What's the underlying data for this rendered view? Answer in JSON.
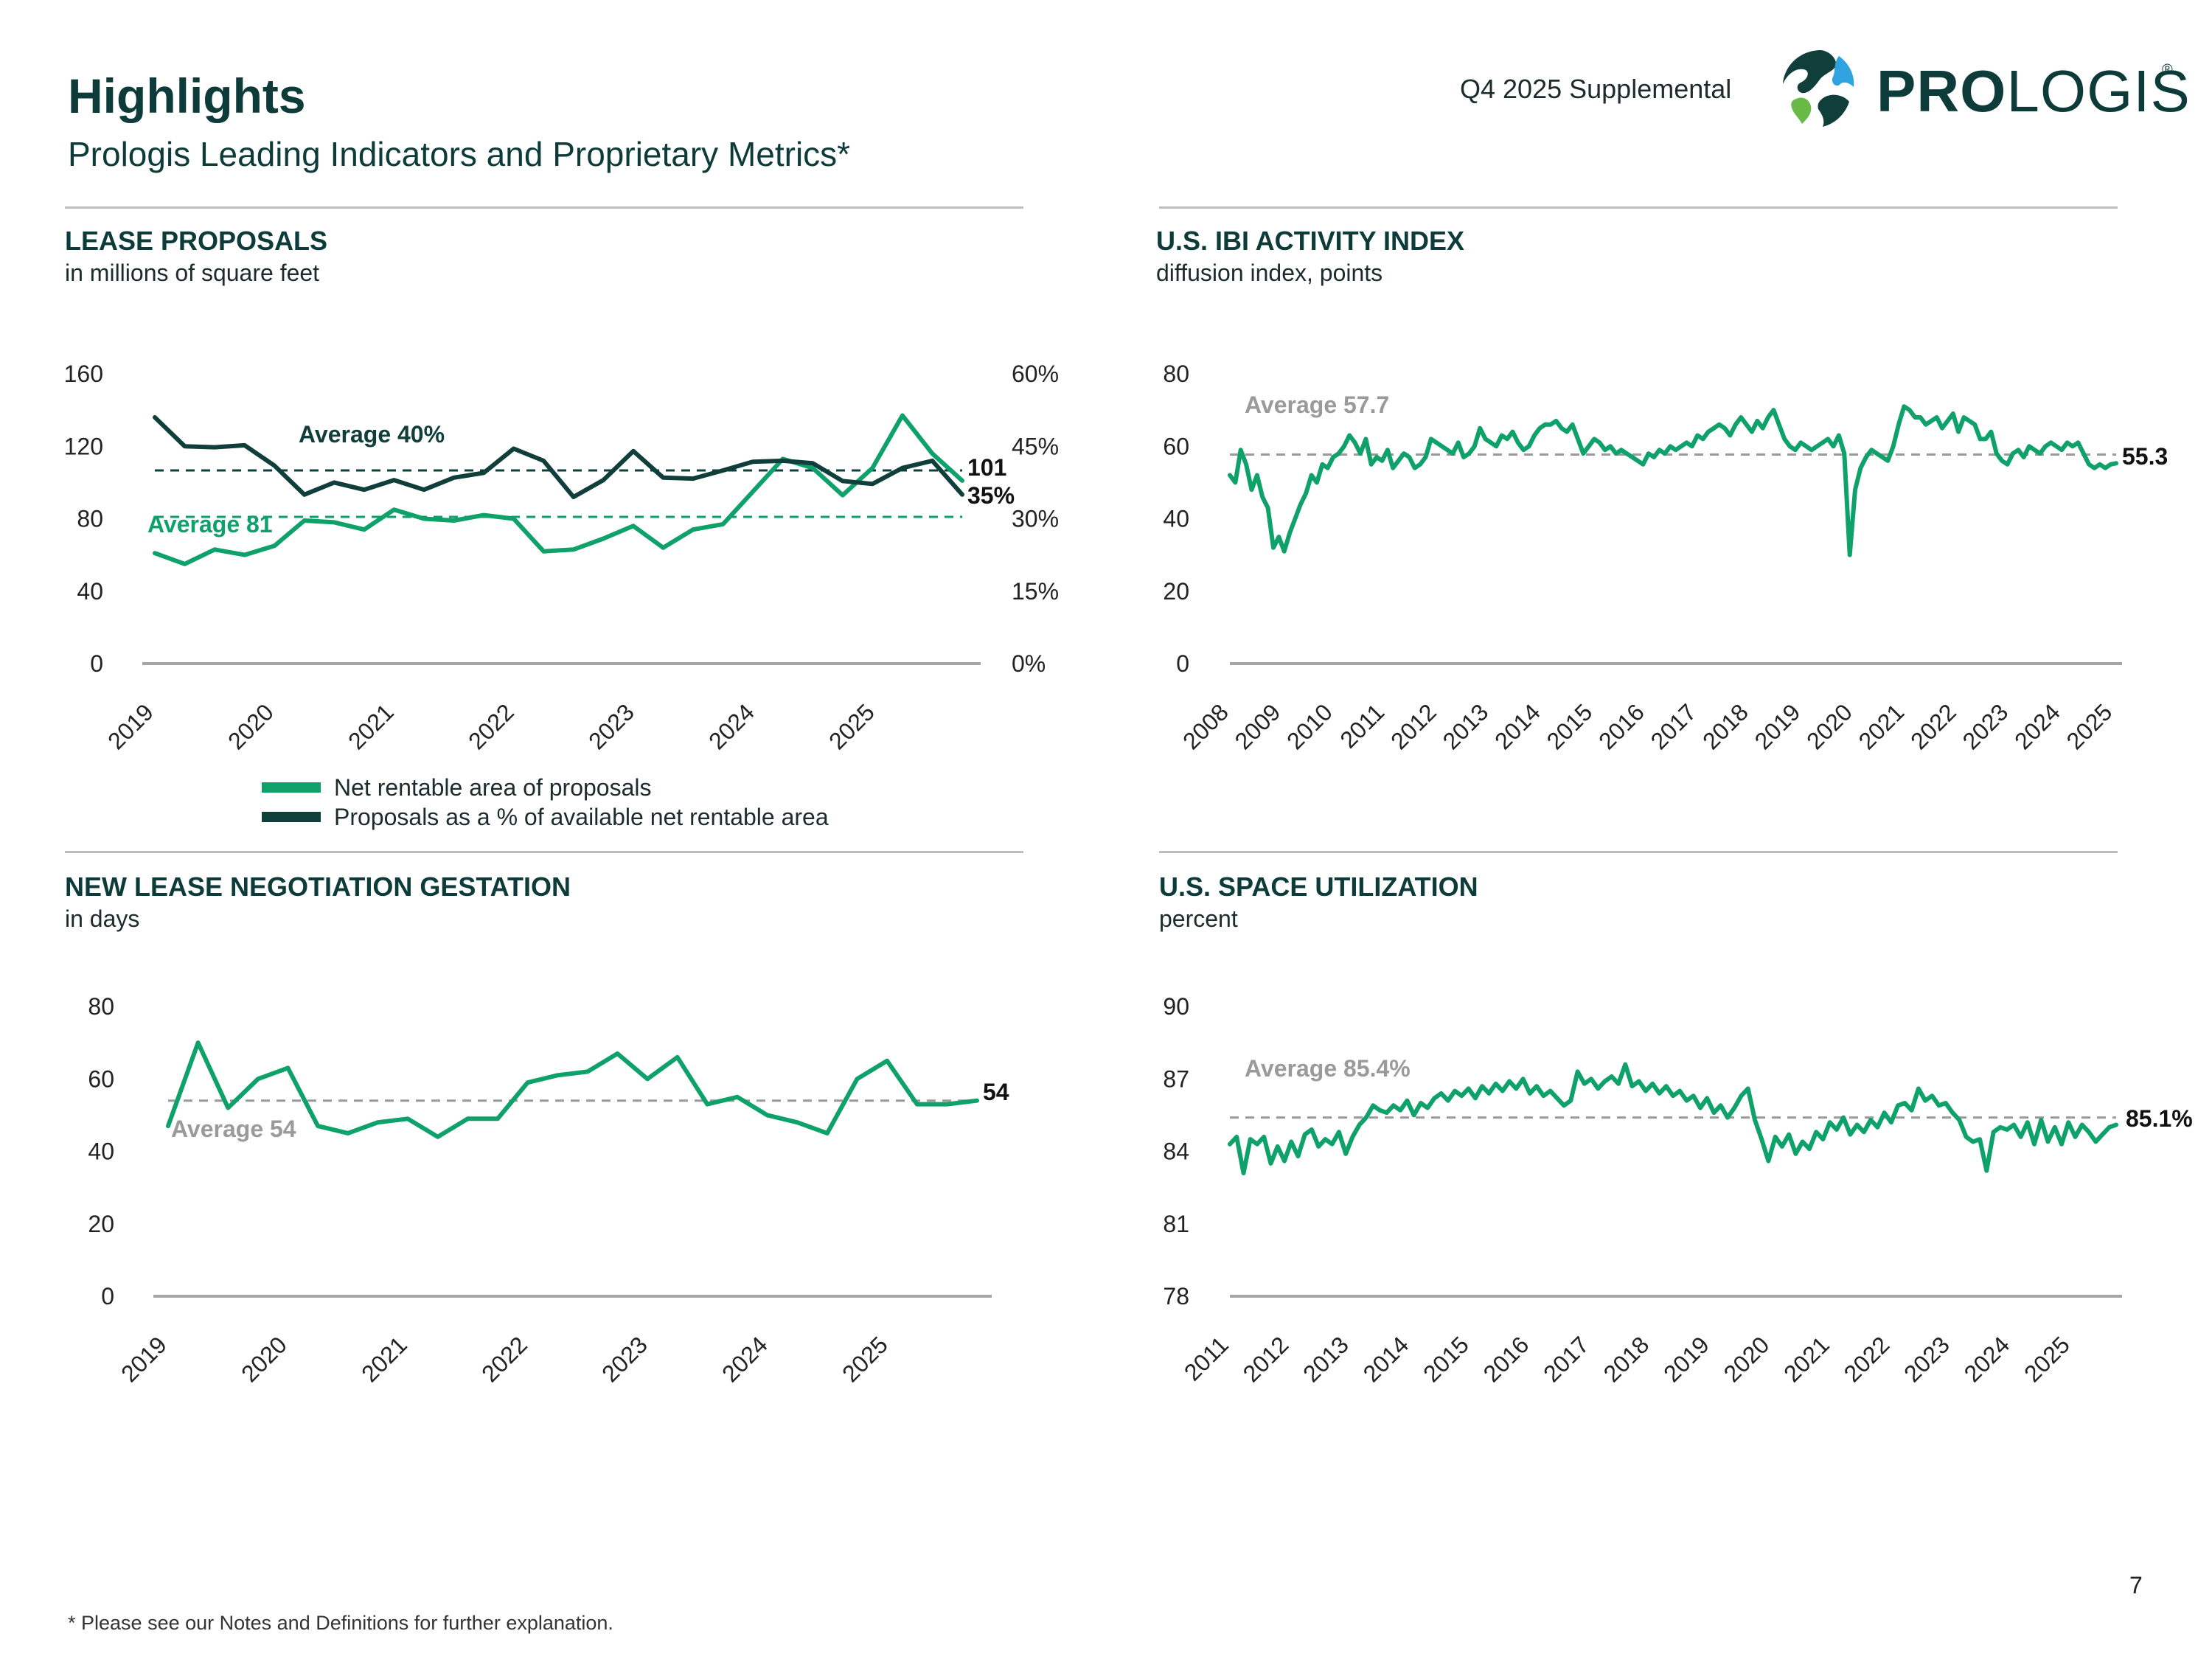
{
  "header": {
    "title": "Highlights",
    "subtitle": "Prologis Leading Indicators and Proprietary Metrics*",
    "supplemental": "Q4 2025 Supplemental",
    "logo_bold": "PRO",
    "logo_rest": "LOGIS",
    "logo_reg": "®"
  },
  "colors": {
    "green": "#0ea16a",
    "dark": "#103f3b",
    "gray_dash": "#9a9a9a",
    "axis": "#a6a6a6",
    "title": "#0d3b3a"
  },
  "panels": {
    "lease": {
      "title": "LEASE PROPOSALS",
      "units": "in millions of square feet"
    },
    "ibi": {
      "title": "U.S. IBI ACTIVITY INDEX",
      "units": "diffusion index, points"
    },
    "gestation": {
      "title": "NEW LEASE NEGOTIATION GESTATION",
      "units": "in days"
    },
    "utilization": {
      "title": "U.S. SPACE UTILIZATION",
      "units": "percent"
    }
  },
  "legend": {
    "items": [
      {
        "label": "Net rentable area of proposals",
        "color": "#0ea16a"
      },
      {
        "label": "Proposals as a % of available net rentable area",
        "color": "#103f3b"
      }
    ]
  },
  "footnote": "* Please see our Notes and Definitions for further explanation.",
  "page_number": "7",
  "chart_data": [
    {
      "id": "lease",
      "type": "line",
      "title": "LEASE PROPOSALS",
      "subtitle": "in millions of square feet",
      "x_ticks": [
        "2019",
        "2020",
        "2021",
        "2022",
        "2023",
        "2024",
        "2025"
      ],
      "ylim": [
        0,
        160
      ],
      "y_ticks": [
        "0",
        "40",
        "80",
        "120",
        "160"
      ],
      "y2lim": [
        0,
        60
      ],
      "y2_ticks": [
        "0%",
        "15%",
        "30%",
        "45%",
        "60%"
      ],
      "grid": false,
      "legend_position": "bottom",
      "x_start": 2019.0,
      "x_step": 0.25,
      "series": [
        {
          "name": "Net rentable area of proposals",
          "axis": "left",
          "color": "#0ea16a",
          "values": [
            61,
            55,
            63,
            60,
            65,
            79,
            78,
            74,
            85,
            80,
            79,
            82,
            80,
            62,
            63,
            69,
            76,
            64,
            74,
            77,
            95,
            113,
            108,
            93,
            108,
            137,
            116,
            101
          ]
        },
        {
          "name": "Proposals as a % of available net rentable area",
          "axis": "right",
          "color": "#103f3b",
          "values": [
            51,
            45,
            44.8,
            45.2,
            41,
            35,
            37.5,
            36,
            38,
            36,
            38.5,
            39.5,
            44.5,
            42,
            34.5,
            38,
            44,
            38.5,
            38.3,
            40,
            41.8,
            42,
            41.5,
            37.8,
            37.2,
            40.5,
            42,
            35
          ]
        }
      ],
      "reference_lines": [
        {
          "label": "Average 40%",
          "axis": "right",
          "value": 40,
          "color": "#103f3b"
        },
        {
          "label": "Average 81",
          "axis": "left",
          "value": 81,
          "color": "#0ea16a"
        }
      ],
      "end_labels": [
        "101",
        "35%"
      ]
    },
    {
      "id": "ibi",
      "type": "line",
      "title": "U.S. IBI ACTIVITY INDEX",
      "subtitle": "diffusion index, points",
      "x_ticks": [
        "2008",
        "2009",
        "2010",
        "2011",
        "2012",
        "2013",
        "2014",
        "2015",
        "2016",
        "2017",
        "2018",
        "2019",
        "2020",
        "2021",
        "2022",
        "2023",
        "2024",
        "2025"
      ],
      "ylim": [
        0,
        80
      ],
      "y_ticks": [
        "0",
        "20",
        "40",
        "60",
        "80"
      ],
      "grid": false,
      "x_start": 2008.0,
      "x_step": 0.083333,
      "series": [
        {
          "name": "",
          "color": "#0ea16a",
          "values": [
            52,
            50,
            59,
            55,
            48,
            52,
            46,
            43,
            32,
            35,
            31,
            36,
            40,
            44,
            47,
            52,
            50,
            55,
            54,
            57,
            58,
            60,
            63,
            61,
            58,
            62,
            55,
            57,
            56,
            59,
            54,
            56,
            58,
            57,
            54,
            55,
            57,
            62,
            61,
            60,
            59,
            58,
            61,
            57,
            58,
            60,
            65,
            62,
            61,
            60,
            63,
            62,
            64,
            61,
            59,
            60,
            63,
            65,
            66,
            66,
            67,
            65,
            64,
            66,
            62,
            58,
            60,
            62,
            61,
            59,
            60,
            58,
            59,
            58,
            57,
            56,
            55,
            58,
            57,
            59,
            58,
            60,
            59,
            60,
            61,
            60,
            63,
            62,
            64,
            65,
            66,
            65,
            63,
            66,
            68,
            66,
            64,
            67,
            65,
            68,
            70,
            66,
            62,
            60,
            59,
            61,
            60,
            59,
            60,
            61,
            62,
            60,
            63,
            58,
            30,
            48,
            54,
            57,
            59,
            58,
            57,
            56,
            60,
            66,
            71,
            70,
            68,
            68,
            66,
            67,
            68,
            65,
            67,
            69,
            64,
            68,
            67,
            66,
            62,
            62,
            64,
            58,
            56,
            55,
            58,
            59,
            57,
            60,
            59,
            58,
            60,
            61,
            60,
            59,
            61,
            60,
            61,
            58,
            55,
            54,
            55,
            54,
            55,
            55.3
          ]
        }
      ],
      "reference_lines": [
        {
          "label": "Average 57.7",
          "value": 57.7,
          "color": "#9a9a9a"
        }
      ],
      "end_labels": [
        "55.3"
      ]
    },
    {
      "id": "gestation",
      "type": "line",
      "title": "NEW LEASE NEGOTIATION GESTATION",
      "subtitle": "in days",
      "x_ticks": [
        "2019",
        "2020",
        "2021",
        "2022",
        "2023",
        "2024",
        "2025"
      ],
      "ylim": [
        0,
        80
      ],
      "y_ticks": [
        "0",
        "20",
        "40",
        "60",
        "80"
      ],
      "grid": false,
      "x_start": 2019.0,
      "x_step": 0.25,
      "series": [
        {
          "name": "",
          "color": "#0ea16a",
          "values": [
            47,
            70,
            52,
            60,
            63,
            47,
            45,
            48,
            49,
            44,
            49,
            49,
            59,
            61,
            62,
            67,
            60,
            66,
            53,
            55,
            50,
            48,
            45,
            60,
            65,
            53,
            53,
            54
          ]
        }
      ],
      "reference_lines": [
        {
          "label": "Average 54",
          "value": 54,
          "color": "#9a9a9a"
        }
      ],
      "end_labels": [
        "54"
      ]
    },
    {
      "id": "utilization",
      "type": "line",
      "title": "U.S. SPACE UTILIZATION",
      "subtitle": "percent",
      "x_ticks": [
        "2011",
        "2012",
        "2013",
        "2014",
        "2015",
        "2016",
        "2017",
        "2018",
        "2019",
        "2020",
        "2021",
        "2022",
        "2023",
        "2024",
        "2025"
      ],
      "ylim": [
        78,
        90
      ],
      "y_ticks": [
        "78",
        "81",
        "84",
        "87",
        "90"
      ],
      "grid": false,
      "x_start": 2011.0,
      "x_step": 0.083333,
      "series": [
        {
          "name": "",
          "color": "#0ea16a",
          "values": [
            84.3,
            84.6,
            83.1,
            84.5,
            84.3,
            84.6,
            83.5,
            84.2,
            83.6,
            84.4,
            83.8,
            84.7,
            84.9,
            84.2,
            84.5,
            84.3,
            84.8,
            83.9,
            84.6,
            85.1,
            85.4,
            85.9,
            85.7,
            85.6,
            85.9,
            85.7,
            86.1,
            85.5,
            86.0,
            85.8,
            86.2,
            86.4,
            86.1,
            86.5,
            86.3,
            86.6,
            86.2,
            86.7,
            86.4,
            86.8,
            86.5,
            86.9,
            86.6,
            87.0,
            86.4,
            86.7,
            86.3,
            86.5,
            86.2,
            85.9,
            86.1,
            87.3,
            86.8,
            87.0,
            86.6,
            86.9,
            87.1,
            86.8,
            87.6,
            86.7,
            86.9,
            86.5,
            86.8,
            86.4,
            86.7,
            86.3,
            86.5,
            86.1,
            86.3,
            85.8,
            86.2,
            85.6,
            85.9,
            85.4,
            85.8,
            86.3,
            86.6,
            85.3,
            84.5,
            83.6,
            84.6,
            84.2,
            84.7,
            83.9,
            84.4,
            84.1,
            84.8,
            84.5,
            85.2,
            84.9,
            85.4,
            84.7,
            85.1,
            84.8,
            85.3,
            85.0,
            85.6,
            85.2,
            85.9,
            86.0,
            85.7,
            86.6,
            86.1,
            86.3,
            85.9,
            86.0,
            85.6,
            85.3,
            84.6,
            84.4,
            84.5,
            83.2,
            84.8,
            85.0,
            84.9,
            85.1,
            84.6,
            85.2,
            84.3,
            85.3,
            84.4,
            85.0,
            84.3,
            85.2,
            84.6,
            85.1,
            84.8,
            84.4,
            84.7,
            85.0,
            85.1
          ]
        }
      ],
      "reference_lines": [
        {
          "label": "Average 85.4%",
          "value": 85.4,
          "color": "#9a9a9a"
        }
      ],
      "end_labels": [
        "85.1%"
      ]
    }
  ]
}
